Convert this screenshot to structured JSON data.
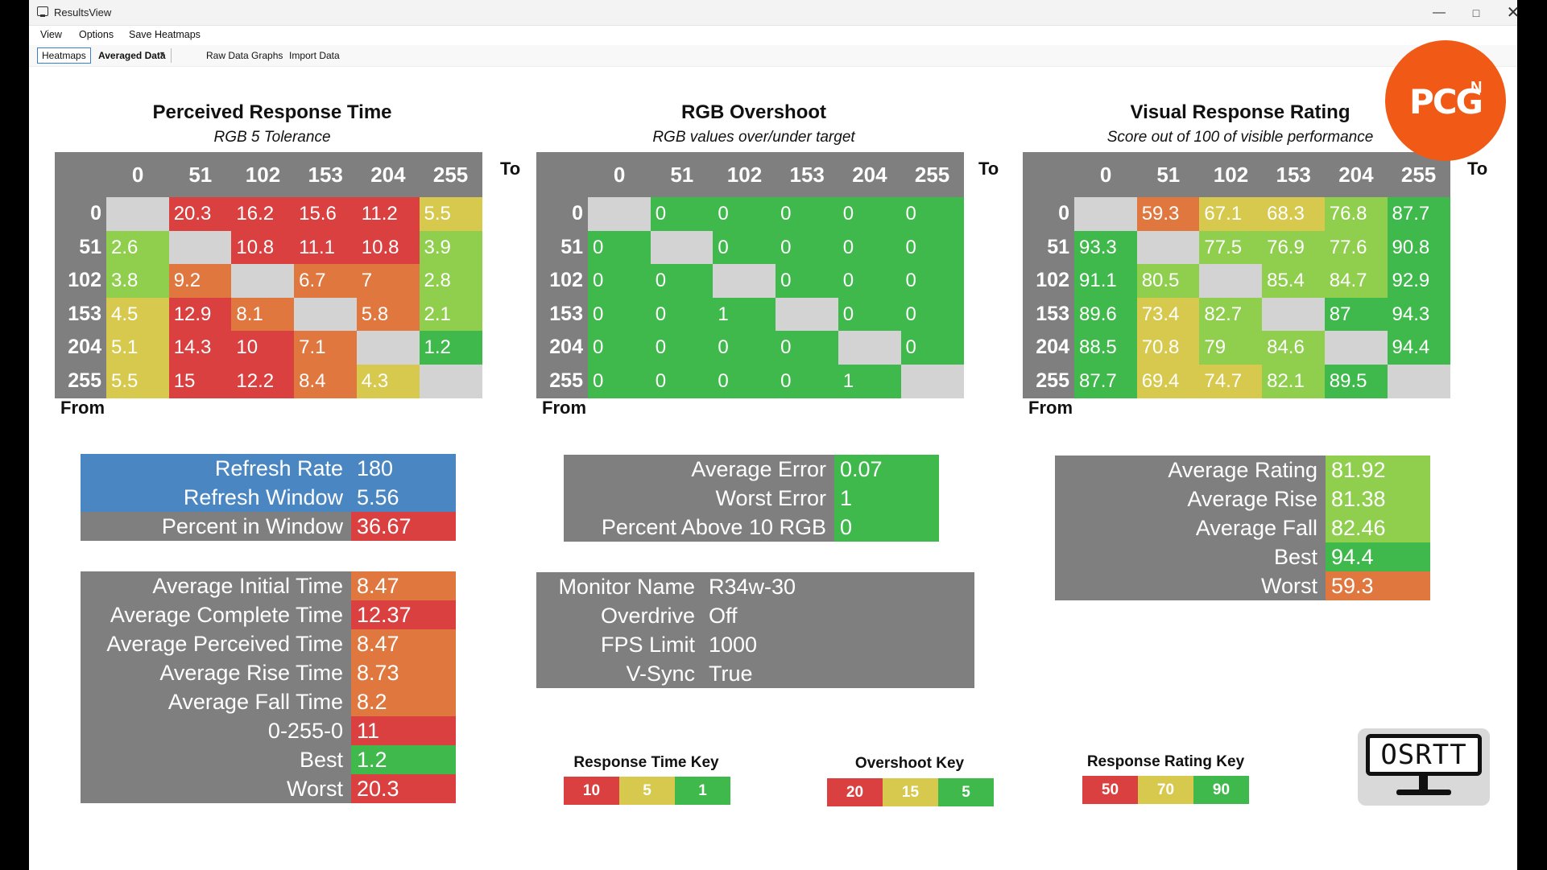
{
  "window": {
    "title": "ResultsView",
    "minimize_icon": "minimize-icon",
    "maximize_icon": "maximize-icon",
    "close_icon": "close-icon"
  },
  "menu": [
    "View",
    "Options",
    "Save Heatmaps"
  ],
  "toolbar": {
    "heatmaps": "Heatmaps",
    "averaged": "Averaged Data",
    "raw": "Raw Data Graphs",
    "import": "Import Data"
  },
  "colors": {
    "red": "#d9403f",
    "orange": "#e0773f",
    "yellow": "#d7c94d",
    "lime": "#8fcf4d",
    "green": "#40b94c",
    "gray": "#7f7f7f",
    "light_gray": "#d3d3d3",
    "blue": "#4a86c2"
  },
  "axis": {
    "to": "To",
    "from": "From",
    "levels": [
      "0",
      "51",
      "102",
      "153",
      "204",
      "255"
    ]
  },
  "heatmaps": [
    {
      "title": "Perceived Response Time",
      "subtitle": "RGB 5 Tolerance",
      "rows": [
        [
          null,
          "20.3",
          "16.2",
          "15.6",
          "11.2",
          "5.5"
        ],
        [
          "2.6",
          null,
          "10.8",
          "11.1",
          "10.8",
          "3.9"
        ],
        [
          "3.8",
          "9.2",
          null,
          "6.7",
          "7",
          "2.8"
        ],
        [
          "4.5",
          "12.9",
          "8.1",
          null,
          "5.8",
          "2.1"
        ],
        [
          "5.1",
          "14.3",
          "10",
          "7.1",
          null,
          "1.2"
        ],
        [
          "5.5",
          "15",
          "12.2",
          "8.4",
          "4.3",
          null
        ]
      ],
      "colors": [
        [
          "gray0",
          "red",
          "red",
          "red",
          "red",
          "yellow"
        ],
        [
          "lime",
          "gray0",
          "red",
          "red",
          "red",
          "lime"
        ],
        [
          "lime",
          "orange",
          "gray0",
          "orange",
          "orange",
          "lime"
        ],
        [
          "yellow",
          "red",
          "orange",
          "gray0",
          "orange",
          "lime"
        ],
        [
          "yellow",
          "red",
          "red",
          "orange",
          "gray0",
          "green"
        ],
        [
          "yellow",
          "red",
          "red",
          "orange",
          "yellow",
          "gray0"
        ]
      ]
    },
    {
      "title": "RGB Overshoot",
      "subtitle": "RGB values over/under target",
      "rows": [
        [
          null,
          "0",
          "0",
          "0",
          "0",
          "0"
        ],
        [
          "0",
          null,
          "0",
          "0",
          "0",
          "0"
        ],
        [
          "0",
          "0",
          null,
          "0",
          "0",
          "0"
        ],
        [
          "0",
          "0",
          "1",
          null,
          "0",
          "0"
        ],
        [
          "0",
          "0",
          "0",
          "0",
          null,
          "0"
        ],
        [
          "0",
          "0",
          "0",
          "0",
          "1",
          null
        ]
      ],
      "colors": [
        [
          "gray0",
          "green",
          "green",
          "green",
          "green",
          "green"
        ],
        [
          "green",
          "gray0",
          "green",
          "green",
          "green",
          "green"
        ],
        [
          "green",
          "green",
          "gray0",
          "green",
          "green",
          "green"
        ],
        [
          "green",
          "green",
          "green",
          "gray0",
          "green",
          "green"
        ],
        [
          "green",
          "green",
          "green",
          "green",
          "gray0",
          "green"
        ],
        [
          "green",
          "green",
          "green",
          "green",
          "green",
          "gray0"
        ]
      ]
    },
    {
      "title": "Visual Response Rating",
      "subtitle": "Score out of 100 of visible performance",
      "rows": [
        [
          null,
          "59.3",
          "67.1",
          "68.3",
          "76.8",
          "87.7"
        ],
        [
          "93.3",
          null,
          "77.5",
          "76.9",
          "77.6",
          "90.8"
        ],
        [
          "91.1",
          "80.5",
          null,
          "85.4",
          "84.7",
          "92.9"
        ],
        [
          "89.6",
          "73.4",
          "82.7",
          null,
          "87",
          "94.3"
        ],
        [
          "88.5",
          "70.8",
          "79",
          "84.6",
          null,
          "94.4"
        ],
        [
          "87.7",
          "69.4",
          "74.7",
          "82.1",
          "89.5",
          null
        ]
      ],
      "colors": [
        [
          "gray0",
          "orange",
          "yellow",
          "yellow",
          "lime",
          "green"
        ],
        [
          "green",
          "gray0",
          "lime",
          "lime",
          "lime",
          "green"
        ],
        [
          "green",
          "lime",
          "gray0",
          "lime",
          "lime",
          "green"
        ],
        [
          "green",
          "yellow",
          "lime",
          "gray0",
          "green",
          "green"
        ],
        [
          "green",
          "yellow",
          "lime",
          "lime",
          "gray0",
          "green"
        ],
        [
          "green",
          "yellow",
          "yellow",
          "lime",
          "green",
          "gray0"
        ]
      ]
    }
  ],
  "refresh_stats": [
    {
      "label": "Refresh Rate",
      "value": "180",
      "label_color": "blue",
      "value_color": "blue"
    },
    {
      "label": "Refresh Window",
      "value": "5.56",
      "label_color": "blue",
      "value_color": "blue"
    },
    {
      "label": "Percent in Window",
      "value": "36.67",
      "label_color": "gray",
      "value_color": "red"
    }
  ],
  "time_stats": [
    {
      "label": "Average Initial Time",
      "value": "8.47",
      "value_color": "orange"
    },
    {
      "label": "Average Complete Time",
      "value": "12.37",
      "value_color": "red"
    },
    {
      "label": "Average Perceived Time",
      "value": "8.47",
      "value_color": "orange"
    },
    {
      "label": "Average Rise Time",
      "value": "8.73",
      "value_color": "orange"
    },
    {
      "label": "Average Fall Time",
      "value": "8.2",
      "value_color": "orange"
    },
    {
      "label": "0-255-0",
      "value": "11",
      "value_color": "red"
    },
    {
      "label": "Best",
      "value": "1.2",
      "value_color": "green"
    },
    {
      "label": "Worst",
      "value": "20.3",
      "value_color": "red"
    }
  ],
  "overshoot_stats": [
    {
      "label": "Average Error",
      "value": "0.07",
      "value_color": "green"
    },
    {
      "label": "Worst Error",
      "value": "1",
      "value_color": "green"
    },
    {
      "label": "Percent Above 10 RGB",
      "value": "0",
      "value_color": "green"
    }
  ],
  "monitor_info": [
    {
      "label": "Monitor Name",
      "value": "R34w-30"
    },
    {
      "label": "Overdrive",
      "value": "Off"
    },
    {
      "label": "FPS Limit",
      "value": "1000"
    },
    {
      "label": "V-Sync",
      "value": "True"
    }
  ],
  "rating_stats": [
    {
      "label": "Average Rating",
      "value": "81.92",
      "value_color": "lime"
    },
    {
      "label": "Average Rise",
      "value": "81.38",
      "value_color": "lime"
    },
    {
      "label": "Average Fall",
      "value": "82.46",
      "value_color": "lime"
    },
    {
      "label": "Best",
      "value": "94.4",
      "value_color": "green"
    },
    {
      "label": "Worst",
      "value": "59.3",
      "value_color": "orange"
    }
  ],
  "keys": [
    {
      "title": "Response Time Key",
      "values": [
        "10",
        "5",
        "1"
      ]
    },
    {
      "title": "Overshoot Key",
      "values": [
        "20",
        "15",
        "5"
      ]
    },
    {
      "title": "Response Rating Key",
      "values": [
        "50",
        "70",
        "90"
      ]
    }
  ],
  "logos": {
    "pcgn": "PCG",
    "pcgn_sup": "N",
    "osrtt": "OSRTT"
  }
}
